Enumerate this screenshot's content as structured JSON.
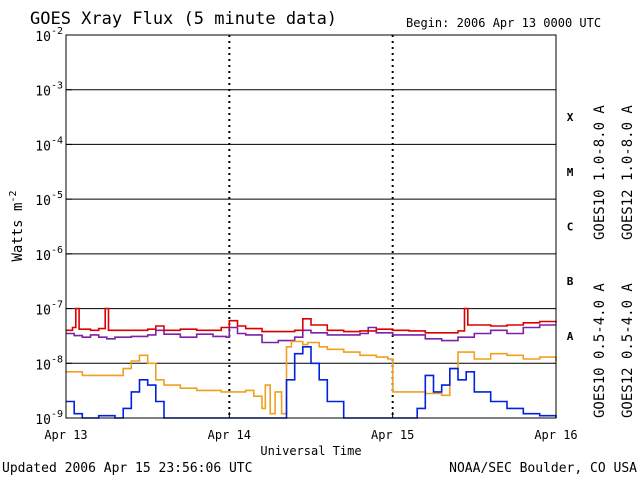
{
  "chart_data": {
    "type": "line",
    "title": "GOES Xray Flux (5 minute data)",
    "begin_label": "Begin:  2006 Apr 13 0000 UTC",
    "xlabel": "Universal Time",
    "ylabel": "Watts m",
    "ylabel_sup": "-2",
    "x_ticks": [
      "Apr 13",
      "Apr 14",
      "Apr 15",
      "Apr 16"
    ],
    "xlim": [
      "2006-04-13T00:00",
      "2006-04-16T00:00"
    ],
    "y_scale": "log",
    "ylim": [
      1e-09,
      0.01
    ],
    "y_ticks": [
      {
        "base": "10",
        "exp": "-9",
        "value": 1e-09
      },
      {
        "base": "10",
        "exp": "-8",
        "value": 1e-08
      },
      {
        "base": "10",
        "exp": "-7",
        "value": 1e-07
      },
      {
        "base": "10",
        "exp": "-6",
        "value": 1e-06
      },
      {
        "base": "10",
        "exp": "-5",
        "value": 1e-05
      },
      {
        "base": "10",
        "exp": "-4",
        "value": 0.0001
      },
      {
        "base": "10",
        "exp": "-3",
        "value": 0.001
      },
      {
        "base": "10",
        "exp": "-2",
        "value": 0.01
      }
    ],
    "flare_classes": [
      {
        "label": "A",
        "value": 1e-08
      },
      {
        "label": "B",
        "value": 1e-07
      },
      {
        "label": "C",
        "value": 1e-06
      },
      {
        "label": "M",
        "value": 1e-05
      },
      {
        "label": "X",
        "value": 0.0001
      }
    ],
    "grid": true,
    "series": [
      {
        "name": "GOES10 1.0-8.0 A",
        "color": "#7a22a8",
        "points": [
          [
            0,
            3.5e-08
          ],
          [
            0.05,
            3.2e-08
          ],
          [
            0.1,
            3e-08
          ],
          [
            0.15,
            3.3e-08
          ],
          [
            0.2,
            3e-08
          ],
          [
            0.25,
            2.8e-08
          ],
          [
            0.3,
            3e-08
          ],
          [
            0.4,
            3.1e-08
          ],
          [
            0.5,
            3.3e-08
          ],
          [
            0.55,
            4e-08
          ],
          [
            0.6,
            3.4e-08
          ],
          [
            0.7,
            3e-08
          ],
          [
            0.8,
            3.4e-08
          ],
          [
            0.9,
            3.1e-08
          ],
          [
            0.98,
            3e-08
          ],
          [
            1.0,
            4.5e-08
          ],
          [
            1.05,
            3.5e-08
          ],
          [
            1.1,
            3.3e-08
          ],
          [
            1.2,
            2.4e-08
          ],
          [
            1.3,
            2.6e-08
          ],
          [
            1.4,
            3e-08
          ],
          [
            1.45,
            4e-08
          ],
          [
            1.5,
            3.6e-08
          ],
          [
            1.6,
            3.3e-08
          ],
          [
            1.7,
            3.3e-08
          ],
          [
            1.8,
            3.5e-08
          ],
          [
            1.85,
            4.5e-08
          ],
          [
            1.9,
            3.6e-08
          ],
          [
            2.0,
            3.3e-08
          ],
          [
            2.1,
            3.3e-08
          ],
          [
            2.2,
            2.8e-08
          ],
          [
            2.3,
            2.6e-08
          ],
          [
            2.4,
            3e-08
          ],
          [
            2.5,
            3.5e-08
          ],
          [
            2.6,
            4e-08
          ],
          [
            2.7,
            3.5e-08
          ],
          [
            2.8,
            4.5e-08
          ],
          [
            2.9,
            5e-08
          ],
          [
            3.0,
            5e-08
          ]
        ]
      },
      {
        "name": "GOES12 1.0-8.0 A",
        "color": "#dd0000",
        "points": [
          [
            0,
            4e-08
          ],
          [
            0.04,
            4.5e-08
          ],
          [
            0.06,
            1e-07
          ],
          [
            0.08,
            4.2e-08
          ],
          [
            0.15,
            4e-08
          ],
          [
            0.2,
            4.3e-08
          ],
          [
            0.24,
            1e-07
          ],
          [
            0.26,
            4e-08
          ],
          [
            0.4,
            4e-08
          ],
          [
            0.5,
            4.2e-08
          ],
          [
            0.55,
            4.8e-08
          ],
          [
            0.6,
            4e-08
          ],
          [
            0.7,
            4.2e-08
          ],
          [
            0.8,
            4e-08
          ],
          [
            0.95,
            4.5e-08
          ],
          [
            1.0,
            6e-08
          ],
          [
            1.05,
            4.8e-08
          ],
          [
            1.1,
            4.3e-08
          ],
          [
            1.2,
            3.8e-08
          ],
          [
            1.3,
            3.8e-08
          ],
          [
            1.4,
            4e-08
          ],
          [
            1.45,
            6.5e-08
          ],
          [
            1.5,
            5e-08
          ],
          [
            1.6,
            4e-08
          ],
          [
            1.7,
            3.8e-08
          ],
          [
            1.8,
            3.9e-08
          ],
          [
            1.9,
            4.2e-08
          ],
          [
            2.0,
            4e-08
          ],
          [
            2.1,
            3.9e-08
          ],
          [
            2.2,
            3.6e-08
          ],
          [
            2.3,
            3.6e-08
          ],
          [
            2.4,
            3.9e-08
          ],
          [
            2.44,
            1e-07
          ],
          [
            2.46,
            5e-08
          ],
          [
            2.5,
            5e-08
          ],
          [
            2.6,
            4.8e-08
          ],
          [
            2.7,
            5e-08
          ],
          [
            2.8,
            5.5e-08
          ],
          [
            2.9,
            5.8e-08
          ],
          [
            3.0,
            5.5e-08
          ]
        ]
      },
      {
        "name": "GOES10 0.5-4.0 A",
        "color": "#f0a020",
        "points": [
          [
            0,
            7e-09
          ],
          [
            0.1,
            6e-09
          ],
          [
            0.3,
            6e-09
          ],
          [
            0.35,
            8e-09
          ],
          [
            0.4,
            1.1e-08
          ],
          [
            0.45,
            1.4e-08
          ],
          [
            0.5,
            1e-08
          ],
          [
            0.55,
            5e-09
          ],
          [
            0.6,
            4e-09
          ],
          [
            0.7,
            3.5e-09
          ],
          [
            0.8,
            3.2e-09
          ],
          [
            0.95,
            3e-09
          ],
          [
            1.0,
            3e-09
          ],
          [
            1.05,
            3e-09
          ],
          [
            1.1,
            3.2e-09
          ],
          [
            1.15,
            2.5e-09
          ],
          [
            1.2,
            1.5e-09
          ],
          [
            1.22,
            4e-09
          ],
          [
            1.25,
            1.2e-09
          ],
          [
            1.28,
            3e-09
          ],
          [
            1.32,
            1.2e-09
          ],
          [
            1.35,
            2e-08
          ],
          [
            1.38,
            2.5e-08
          ],
          [
            1.45,
            2.2e-08
          ],
          [
            1.48,
            2.4e-08
          ],
          [
            1.55,
            2e-08
          ],
          [
            1.6,
            1.8e-08
          ],
          [
            1.7,
            1.6e-08
          ],
          [
            1.8,
            1.4e-08
          ],
          [
            1.9,
            1.3e-08
          ],
          [
            1.97,
            1.2e-08
          ],
          [
            2.0,
            3e-09
          ],
          [
            2.1,
            3e-09
          ],
          [
            2.2,
            2.8e-09
          ],
          [
            2.3,
            2.6e-09
          ],
          [
            2.35,
            8e-09
          ],
          [
            2.4,
            1.6e-08
          ],
          [
            2.5,
            1.2e-08
          ],
          [
            2.6,
            1.5e-08
          ],
          [
            2.7,
            1.4e-08
          ],
          [
            2.8,
            1.2e-08
          ],
          [
            2.9,
            1.3e-08
          ],
          [
            3.0,
            1.1e-08
          ]
        ]
      },
      {
        "name": "GOES12 0.5-4.0 A",
        "color": "#0022dd",
        "points": [
          [
            0,
            2e-09
          ],
          [
            0.05,
            1.2e-09
          ],
          [
            0.1,
            1e-09
          ],
          [
            0.2,
            1.1e-09
          ],
          [
            0.3,
            1e-09
          ],
          [
            0.35,
            1.5e-09
          ],
          [
            0.4,
            3e-09
          ],
          [
            0.45,
            5e-09
          ],
          [
            0.5,
            4e-09
          ],
          [
            0.55,
            2e-09
          ],
          [
            0.6,
            1e-09
          ],
          [
            0.7,
            1e-09
          ],
          [
            0.9,
            1e-09
          ],
          [
            1.0,
            1e-09
          ],
          [
            1.2,
            1e-09
          ],
          [
            1.3,
            1e-09
          ],
          [
            1.35,
            5e-09
          ],
          [
            1.4,
            1.5e-08
          ],
          [
            1.45,
            2e-08
          ],
          [
            1.5,
            1e-08
          ],
          [
            1.55,
            5e-09
          ],
          [
            1.6,
            2e-09
          ],
          [
            1.7,
            1e-09
          ],
          [
            1.8,
            1e-09
          ],
          [
            1.9,
            1e-09
          ],
          [
            2.0,
            1e-09
          ],
          [
            2.1,
            1e-09
          ],
          [
            2.15,
            1.5e-09
          ],
          [
            2.2,
            6e-09
          ],
          [
            2.25,
            3e-09
          ],
          [
            2.3,
            4e-09
          ],
          [
            2.35,
            8e-09
          ],
          [
            2.4,
            5e-09
          ],
          [
            2.45,
            7e-09
          ],
          [
            2.5,
            3e-09
          ],
          [
            2.6,
            2e-09
          ],
          [
            2.7,
            1.5e-09
          ],
          [
            2.8,
            1.2e-09
          ],
          [
            2.9,
            1.1e-09
          ],
          [
            3.0,
            1e-09
          ]
        ]
      }
    ]
  },
  "footer": {
    "updated": "Updated 2006 Apr 15 23:56:06 UTC",
    "credit": "NOAA/SEC Boulder, CO USA"
  }
}
